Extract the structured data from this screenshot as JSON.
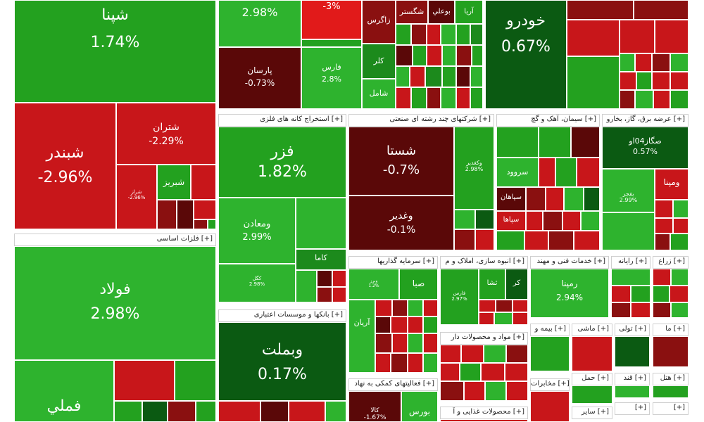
{
  "colors": {
    "pos_bright": "#2eb32e",
    "pos": "#23a11f",
    "pos_mid": "#1c8a1c",
    "pos_dark": "#0b5a12",
    "neg_bright": "#e11a1a",
    "neg": "#c01414",
    "neg_mid": "#8a1010",
    "neg_dark": "#5a0808",
    "flat": "#ffffff"
  },
  "chart_data": {
    "type": "treemap",
    "sectors": [
      {
        "name": "فلزات اساسی [+]"
      },
      {
        "name": "استخراج کانه های فلزی [+]"
      },
      {
        "name": "بانکها و موسسات اعتباری [+]"
      },
      {
        "name": "شرکتهای چند رشته ای صنعتی [+]"
      },
      {
        "name": "سیمان، آهک و گچ [+]"
      },
      {
        "name": "عرضه برق، گاز، بخارو [+]"
      },
      {
        "name": "سرمایه گذاریها [+]"
      },
      {
        "name": "انبوه سازی، املاک و م [+]"
      },
      {
        "name": "خدمات فنی و مهند [+]"
      },
      {
        "name": "رایانه [+]"
      },
      {
        "name": "زراع [+]"
      },
      {
        "name": "مواد و محصولات دار [+]"
      },
      {
        "name": "بیمه و [+]"
      },
      {
        "name": "ماشی [+]"
      },
      {
        "name": "تولی [+]"
      },
      {
        "name": "ما [+]"
      },
      {
        "name": "فعالیتهای کمکی به نهاد [+]"
      },
      {
        "name": "مخابرات [+]"
      },
      {
        "name": "محصولات غذایی و آ [+]"
      },
      {
        "name": "حمل [+]"
      },
      {
        "name": "قند [+]"
      },
      {
        "name": "هتل [+]"
      },
      {
        "name": "سایر [+]"
      },
      {
        "name": "[+]"
      }
    ],
    "tiles": [
      {
        "symbol": "شپنا",
        "change": "1.74%"
      },
      {
        "symbol": "",
        "change": "2.98%"
      },
      {
        "symbol": "",
        "change": "-3%"
      },
      {
        "symbol": "خودرو",
        "change": "0.67%"
      },
      {
        "symbol": "شگستر",
        "change": ""
      },
      {
        "symbol": "بوعلي",
        "change": ""
      },
      {
        "symbol": "آريا",
        "change": ""
      },
      {
        "symbol": "زاگرس",
        "change": ""
      },
      {
        "symbol": "پارسان",
        "change": "-0.73%"
      },
      {
        "symbol": "فارس",
        "change": "2.8%"
      },
      {
        "symbol": "کلر",
        "change": ""
      },
      {
        "symbol": "شامل",
        "change": ""
      },
      {
        "symbol": "شبندر",
        "change": "-2.96%"
      },
      {
        "symbol": "شتران",
        "change": "-2.29%"
      },
      {
        "symbol": "شراز",
        "change": "-2.96%"
      },
      {
        "symbol": "شبريز",
        "change": ""
      },
      {
        "symbol": "فولاد",
        "change": "2.98%"
      },
      {
        "symbol": "فملي",
        "change": ""
      },
      {
        "symbol": "فزر",
        "change": "1.82%"
      },
      {
        "symbol": "ومعادن",
        "change": "2.99%"
      },
      {
        "symbol": "کگل",
        "change": "2.98%"
      },
      {
        "symbol": "کاما",
        "change": ""
      },
      {
        "symbol": "وبملت",
        "change": "0.17%"
      },
      {
        "symbol": "شستا",
        "change": "-0.7%"
      },
      {
        "symbol": "وغدير",
        "change": "-0.1%"
      },
      {
        "symbol": "وکغدير",
        "change": "2.98%"
      },
      {
        "symbol": "صگاز04او",
        "change": "0.57%"
      },
      {
        "symbol": "ومپنا",
        "change": ""
      },
      {
        "symbol": "بفجر",
        "change": "2.99%"
      },
      {
        "symbol": "سپاهان",
        "change": ""
      },
      {
        "symbol": "سروود",
        "change": ""
      },
      {
        "symbol": "سپاهان",
        "change": ""
      },
      {
        "symbol": "سپاها",
        "change": ""
      },
      {
        "symbol": "صبا",
        "change": ""
      },
      {
        "symbol": "آريان",
        "change": ""
      },
      {
        "symbol": "وبرز",
        "change": "1.2%"
      },
      {
        "symbol": "ثشا",
        "change": ""
      },
      {
        "symbol": "کر",
        "change": ""
      },
      {
        "symbol": "رمپنا",
        "change": "2.94%"
      },
      {
        "symbol": "فارس",
        "change": "2.97%"
      },
      {
        "symbol": "بورس",
        "change": ""
      },
      {
        "symbol": "کالا",
        "change": "-1.67%"
      }
    ]
  }
}
